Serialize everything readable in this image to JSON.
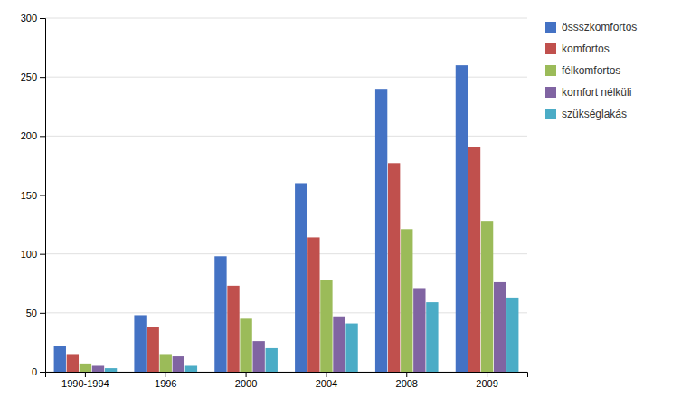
{
  "chart_data": {
    "type": "bar",
    "categories": [
      "1990-1994",
      "1996",
      "2000",
      "2004",
      "2008",
      "2009"
    ],
    "series": [
      {
        "name": "össszkomfortos",
        "color": "#4472C4",
        "values": [
          22,
          48,
          98,
          160,
          240,
          260
        ]
      },
      {
        "name": "komfortos",
        "color": "#C0504D",
        "values": [
          15,
          38,
          73,
          114,
          177,
          191
        ]
      },
      {
        "name": "félkomfortos",
        "color": "#9BBB59",
        "values": [
          7,
          15,
          45,
          78,
          121,
          128
        ]
      },
      {
        "name": "komfort nélküli",
        "color": "#8064A2",
        "values": [
          5,
          13,
          26,
          47,
          71,
          76
        ]
      },
      {
        "name": "szükséglakás",
        "color": "#4BACC6",
        "values": [
          3,
          5,
          20,
          41,
          59,
          63
        ]
      }
    ],
    "ylim": [
      0,
      300
    ],
    "yticks": [
      0,
      50,
      100,
      150,
      200,
      250,
      300
    ],
    "grid": true,
    "legend": "right"
  }
}
